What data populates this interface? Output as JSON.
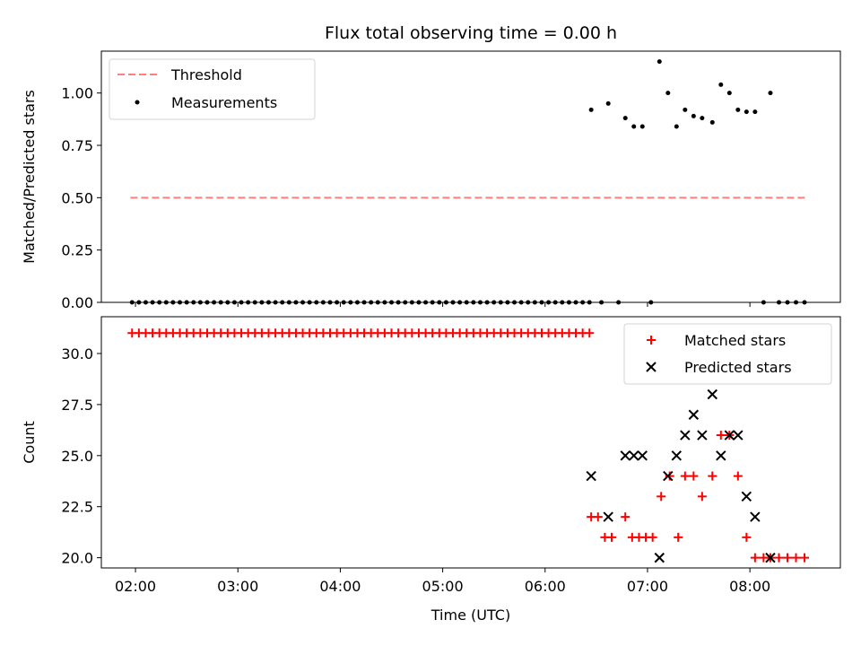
{
  "chart_data": [
    {
      "type": "scatter",
      "title": "Flux total observing time = 0.00 h",
      "ylabel": "Matched/Predicted stars",
      "xlabel": "",
      "xlim": [
        "01:40",
        "08:53"
      ],
      "ylim": [
        0,
        1.2
      ],
      "yticks": [
        0.0,
        0.25,
        0.5,
        0.75,
        1.0
      ],
      "ytick_labels": [
        "0.00",
        "0.25",
        "0.50",
        "0.75",
        "1.00"
      ],
      "legend_position": "top-left",
      "series": [
        {
          "name": "Threshold",
          "kind": "line",
          "style": "dashed",
          "color": "#ff7f7f",
          "x": [
            "01:57",
            "08:33"
          ],
          "y": [
            0.5,
            0.5
          ]
        },
        {
          "name": "Measurements",
          "kind": "scatter",
          "marker": "dot",
          "color": "#000000",
          "points": [
            [
              "01:58",
              0
            ],
            [
              "02:02",
              0
            ],
            [
              "02:06",
              0
            ],
            [
              "02:10",
              0
            ],
            [
              "02:14",
              0
            ],
            [
              "02:18",
              0
            ],
            [
              "02:22",
              0
            ],
            [
              "02:26",
              0
            ],
            [
              "02:30",
              0
            ],
            [
              "02:34",
              0
            ],
            [
              "02:38",
              0
            ],
            [
              "02:42",
              0
            ],
            [
              "02:46",
              0
            ],
            [
              "02:50",
              0
            ],
            [
              "02:54",
              0
            ],
            [
              "02:58",
              0
            ],
            [
              "03:02",
              0
            ],
            [
              "03:06",
              0
            ],
            [
              "03:10",
              0
            ],
            [
              "03:14",
              0
            ],
            [
              "03:18",
              0
            ],
            [
              "03:22",
              0
            ],
            [
              "03:26",
              0
            ],
            [
              "03:30",
              0
            ],
            [
              "03:34",
              0
            ],
            [
              "03:38",
              0
            ],
            [
              "03:42",
              0
            ],
            [
              "03:46",
              0
            ],
            [
              "03:50",
              0
            ],
            [
              "03:54",
              0
            ],
            [
              "03:58",
              0
            ],
            [
              "04:02",
              0
            ],
            [
              "04:06",
              0
            ],
            [
              "04:10",
              0
            ],
            [
              "04:14",
              0
            ],
            [
              "04:18",
              0
            ],
            [
              "04:22",
              0
            ],
            [
              "04:26",
              0
            ],
            [
              "04:30",
              0
            ],
            [
              "04:34",
              0
            ],
            [
              "04:38",
              0
            ],
            [
              "04:42",
              0
            ],
            [
              "04:46",
              0
            ],
            [
              "04:50",
              0
            ],
            [
              "04:54",
              0
            ],
            [
              "04:58",
              0
            ],
            [
              "05:02",
              0
            ],
            [
              "05:06",
              0
            ],
            [
              "05:10",
              0
            ],
            [
              "05:14",
              0
            ],
            [
              "05:18",
              0
            ],
            [
              "05:22",
              0
            ],
            [
              "05:26",
              0
            ],
            [
              "05:30",
              0
            ],
            [
              "05:34",
              0
            ],
            [
              "05:38",
              0
            ],
            [
              "05:42",
              0
            ],
            [
              "05:46",
              0
            ],
            [
              "05:50",
              0
            ],
            [
              "05:54",
              0
            ],
            [
              "05:58",
              0
            ],
            [
              "06:02",
              0
            ],
            [
              "06:06",
              0
            ],
            [
              "06:10",
              0
            ],
            [
              "06:14",
              0
            ],
            [
              "06:18",
              0
            ],
            [
              "06:22",
              0
            ],
            [
              "06:26",
              0
            ],
            [
              "06:27",
              0.92
            ],
            [
              "06:33",
              0
            ],
            [
              "06:37",
              0.95
            ],
            [
              "06:43",
              0
            ],
            [
              "06:47",
              0.88
            ],
            [
              "06:52",
              0.84
            ],
            [
              "06:57",
              0.84
            ],
            [
              "07:02",
              0
            ],
            [
              "07:07",
              1.15
            ],
            [
              "07:12",
              1.0
            ],
            [
              "07:17",
              0.84
            ],
            [
              "07:22",
              0.92
            ],
            [
              "07:27",
              0.89
            ],
            [
              "07:32",
              0.88
            ],
            [
              "07:38",
              0.86
            ],
            [
              "07:43",
              1.04
            ],
            [
              "07:48",
              1.0
            ],
            [
              "07:53",
              0.92
            ],
            [
              "07:58",
              0.91
            ],
            [
              "08:03",
              0.91
            ],
            [
              "08:08",
              0
            ],
            [
              "08:12",
              1.0
            ],
            [
              "08:17",
              0
            ],
            [
              "08:22",
              0
            ],
            [
              "08:27",
              0
            ],
            [
              "08:32",
              0
            ]
          ]
        }
      ]
    },
    {
      "type": "scatter",
      "title": "",
      "ylabel": "Count",
      "xlabel": "Time (UTC)",
      "xlim": [
        "01:40",
        "08:53"
      ],
      "ylim": [
        19.5,
        31.8
      ],
      "yticks": [
        20.0,
        22.5,
        25.0,
        27.5,
        30.0
      ],
      "ytick_labels": [
        "20.0",
        "22.5",
        "25.0",
        "27.5",
        "30.0"
      ],
      "xticks": [
        "02:00",
        "03:00",
        "04:00",
        "05:00",
        "06:00",
        "07:00",
        "08:00"
      ],
      "legend_position": "top-right",
      "series": [
        {
          "name": "Matched stars",
          "kind": "scatter",
          "marker": "plus",
          "color": "#ff0000",
          "points": [
            [
              "01:58",
              31
            ],
            [
              "02:02",
              31
            ],
            [
              "02:06",
              31
            ],
            [
              "02:10",
              31
            ],
            [
              "02:14",
              31
            ],
            [
              "02:18",
              31
            ],
            [
              "02:22",
              31
            ],
            [
              "02:26",
              31
            ],
            [
              "02:30",
              31
            ],
            [
              "02:34",
              31
            ],
            [
              "02:38",
              31
            ],
            [
              "02:42",
              31
            ],
            [
              "02:46",
              31
            ],
            [
              "02:50",
              31
            ],
            [
              "02:54",
              31
            ],
            [
              "02:58",
              31
            ],
            [
              "03:02",
              31
            ],
            [
              "03:06",
              31
            ],
            [
              "03:10",
              31
            ],
            [
              "03:14",
              31
            ],
            [
              "03:18",
              31
            ],
            [
              "03:22",
              31
            ],
            [
              "03:26",
              31
            ],
            [
              "03:30",
              31
            ],
            [
              "03:34",
              31
            ],
            [
              "03:38",
              31
            ],
            [
              "03:42",
              31
            ],
            [
              "03:46",
              31
            ],
            [
              "03:50",
              31
            ],
            [
              "03:54",
              31
            ],
            [
              "03:58",
              31
            ],
            [
              "04:02",
              31
            ],
            [
              "04:06",
              31
            ],
            [
              "04:10",
              31
            ],
            [
              "04:14",
              31
            ],
            [
              "04:18",
              31
            ],
            [
              "04:22",
              31
            ],
            [
              "04:26",
              31
            ],
            [
              "04:30",
              31
            ],
            [
              "04:34",
              31
            ],
            [
              "04:38",
              31
            ],
            [
              "04:42",
              31
            ],
            [
              "04:46",
              31
            ],
            [
              "04:50",
              31
            ],
            [
              "04:54",
              31
            ],
            [
              "04:58",
              31
            ],
            [
              "05:02",
              31
            ],
            [
              "05:06",
              31
            ],
            [
              "05:10",
              31
            ],
            [
              "05:14",
              31
            ],
            [
              "05:18",
              31
            ],
            [
              "05:22",
              31
            ],
            [
              "05:26",
              31
            ],
            [
              "05:30",
              31
            ],
            [
              "05:34",
              31
            ],
            [
              "05:38",
              31
            ],
            [
              "05:42",
              31
            ],
            [
              "05:46",
              31
            ],
            [
              "05:50",
              31
            ],
            [
              "05:54",
              31
            ],
            [
              "05:58",
              31
            ],
            [
              "06:02",
              31
            ],
            [
              "06:06",
              31
            ],
            [
              "06:10",
              31
            ],
            [
              "06:14",
              31
            ],
            [
              "06:18",
              31
            ],
            [
              "06:22",
              31
            ],
            [
              "06:26",
              31
            ],
            [
              "06:27",
              22
            ],
            [
              "06:31",
              22
            ],
            [
              "06:35",
              21
            ],
            [
              "06:39",
              21
            ],
            [
              "06:47",
              22
            ],
            [
              "06:51",
              21
            ],
            [
              "06:55",
              21
            ],
            [
              "06:59",
              21
            ],
            [
              "07:03",
              21
            ],
            [
              "07:08",
              23
            ],
            [
              "07:13",
              24
            ],
            [
              "07:18",
              21
            ],
            [
              "07:22",
              24
            ],
            [
              "07:27",
              24
            ],
            [
              "07:32",
              23
            ],
            [
              "07:38",
              24
            ],
            [
              "07:43",
              26
            ],
            [
              "07:48",
              26
            ],
            [
              "07:53",
              24
            ],
            [
              "07:58",
              21
            ],
            [
              "08:03",
              20
            ],
            [
              "08:08",
              20
            ],
            [
              "08:12",
              20
            ],
            [
              "08:17",
              20
            ],
            [
              "08:22",
              20
            ],
            [
              "08:27",
              20
            ],
            [
              "08:32",
              20
            ]
          ]
        },
        {
          "name": "Predicted stars",
          "kind": "scatter",
          "marker": "x",
          "color": "#000000",
          "points": [
            [
              "06:27",
              24
            ],
            [
              "06:37",
              22
            ],
            [
              "06:47",
              25
            ],
            [
              "06:52",
              25
            ],
            [
              "06:57",
              25
            ],
            [
              "07:07",
              20
            ],
            [
              "07:12",
              24
            ],
            [
              "07:17",
              25
            ],
            [
              "07:22",
              26
            ],
            [
              "07:27",
              27
            ],
            [
              "07:32",
              26
            ],
            [
              "07:38",
              28
            ],
            [
              "07:43",
              25
            ],
            [
              "07:48",
              26
            ],
            [
              "07:53",
              26
            ],
            [
              "07:58",
              23
            ],
            [
              "08:03",
              22
            ],
            [
              "08:12",
              20
            ]
          ]
        }
      ]
    }
  ]
}
